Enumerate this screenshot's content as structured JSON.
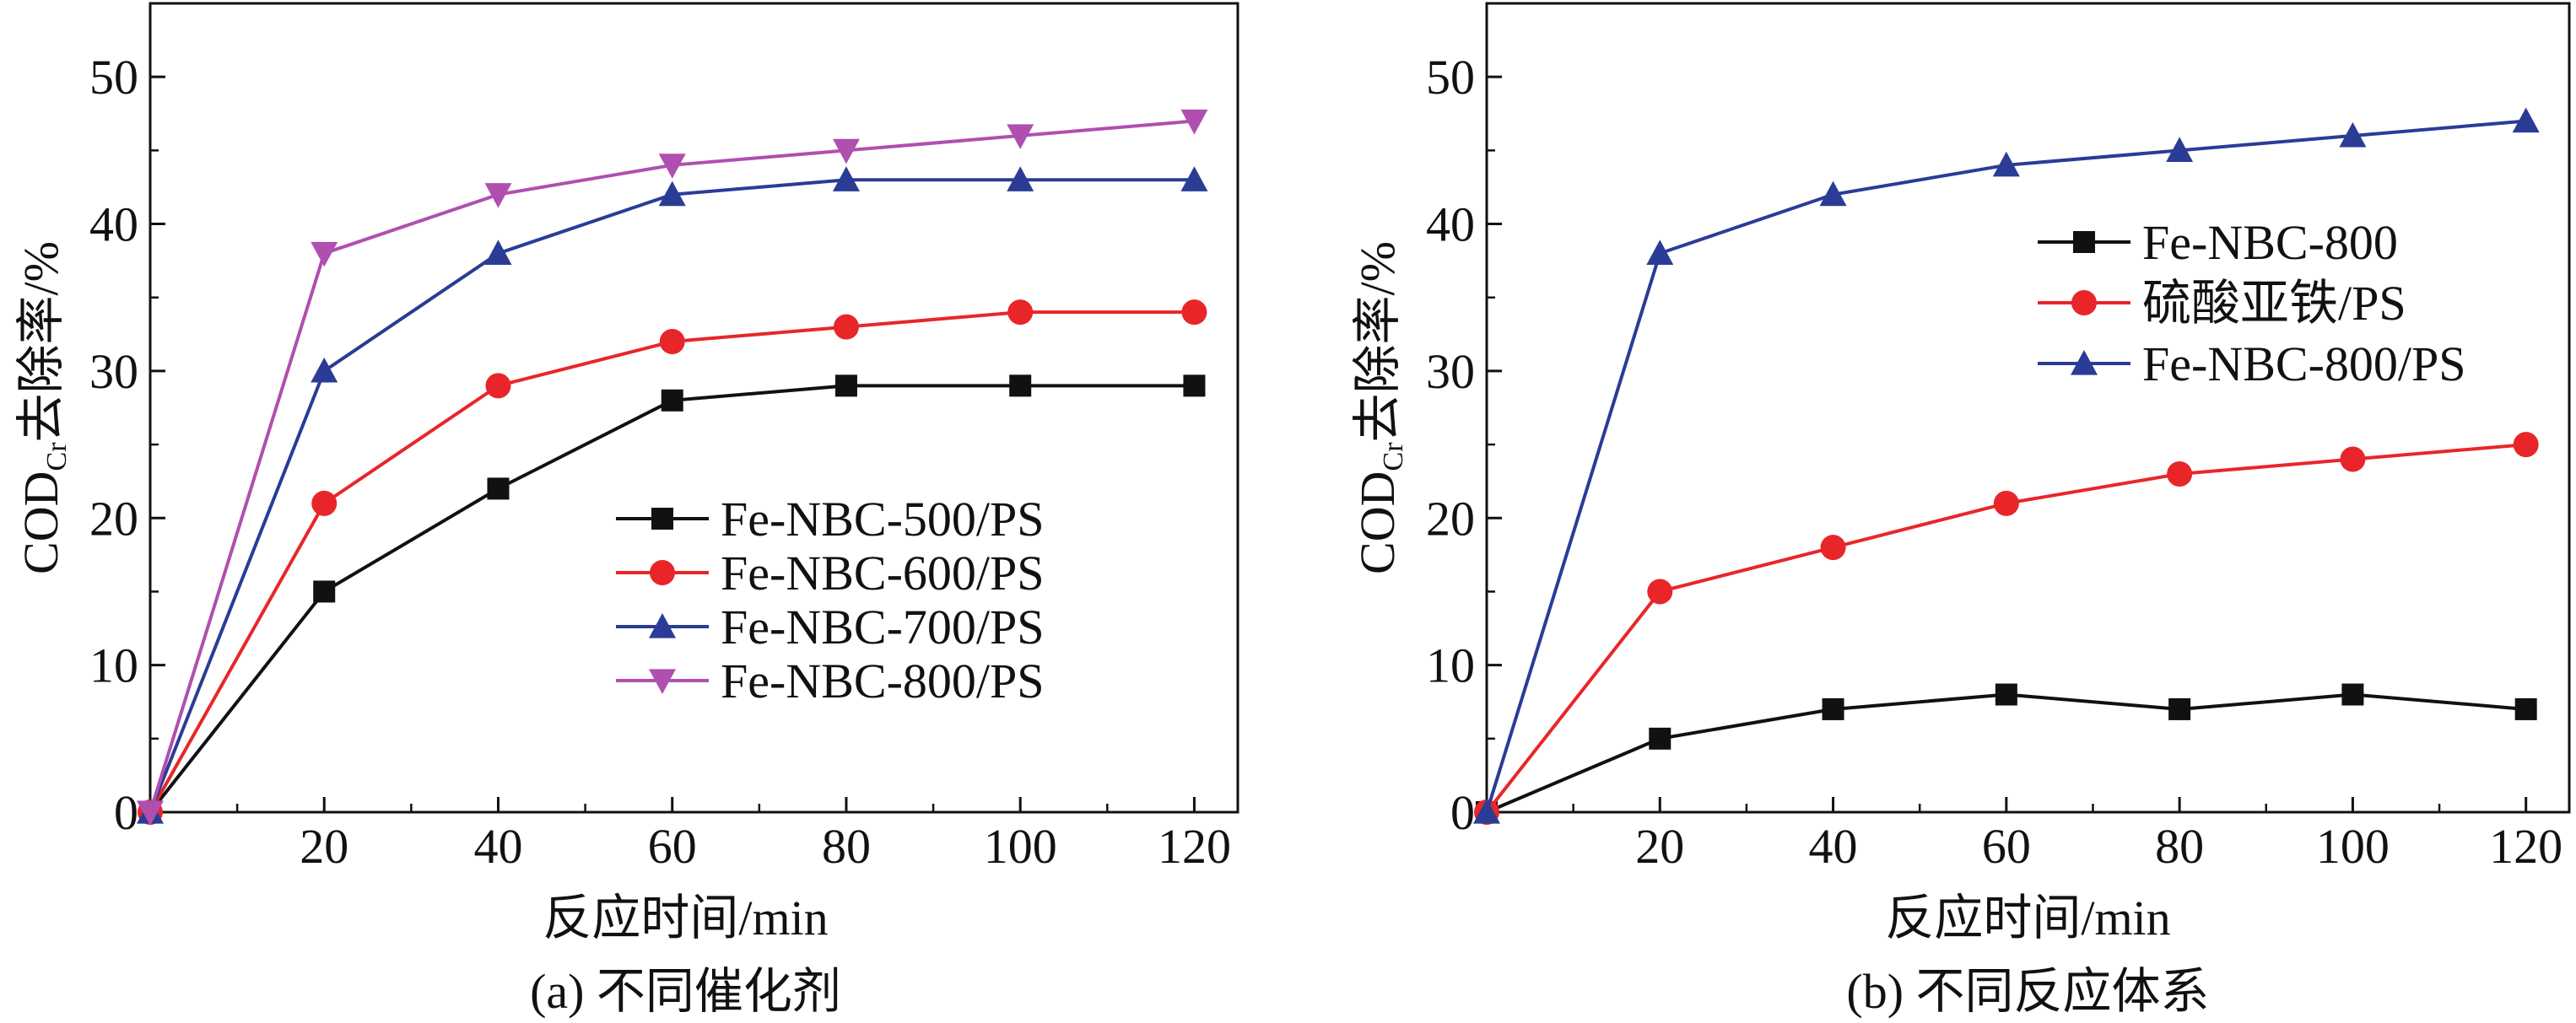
{
  "chart_data": [
    {
      "type": "line",
      "caption": "(a) 不同催化剂",
      "xlabel": "反应时间/min",
      "ylabel": {
        "main": "COD",
        "sub": "Cr",
        "rest": "去除率/%"
      },
      "xlim": [
        0,
        125
      ],
      "ylim": [
        0,
        55
      ],
      "xticks": [
        20,
        40,
        60,
        80,
        100,
        120
      ],
      "yticks": [
        0,
        10,
        20,
        30,
        40,
        50
      ],
      "grid": false,
      "legend_position": "lower-right",
      "x": [
        0,
        20,
        40,
        60,
        80,
        100,
        120
      ],
      "series": [
        {
          "name": "Fe-NBC-500/PS",
          "color": "#111111",
          "marker": "square",
          "values": [
            0,
            15,
            22,
            28,
            29,
            29,
            29
          ]
        },
        {
          "name": "Fe-NBC-600/PS",
          "color": "#e8262a",
          "marker": "circle",
          "values": [
            0,
            21,
            29,
            32,
            33,
            34,
            34
          ]
        },
        {
          "name": "Fe-NBC-700/PS",
          "color": "#2b3c96",
          "marker": "triangle-up",
          "values": [
            0,
            30,
            38,
            42,
            43,
            43,
            43
          ]
        },
        {
          "name": "Fe-NBC-800/PS",
          "color": "#b04fb0",
          "marker": "triangle-down",
          "values": [
            0,
            38,
            42,
            44,
            45,
            46,
            47
          ]
        }
      ]
    },
    {
      "type": "line",
      "caption": "(b) 不同反应体系",
      "xlabel": "反应时间/min",
      "ylabel": {
        "main": "COD",
        "sub": "Cr",
        "rest": "去除率/%"
      },
      "xlim": [
        0,
        125
      ],
      "ylim": [
        0,
        55
      ],
      "xticks": [
        20,
        40,
        60,
        80,
        100,
        120
      ],
      "yticks": [
        0,
        10,
        20,
        30,
        40,
        50
      ],
      "grid": false,
      "legend_position": "upper-right",
      "x": [
        0,
        20,
        40,
        60,
        80,
        100,
        120
      ],
      "series": [
        {
          "name": "Fe-NBC-800",
          "color": "#111111",
          "marker": "square",
          "values": [
            0,
            5,
            7,
            8,
            7,
            8,
            7
          ]
        },
        {
          "name": "硫酸亚铁/PS",
          "color": "#e8262a",
          "marker": "circle",
          "values": [
            0,
            15,
            18,
            21,
            23,
            24,
            25
          ]
        },
        {
          "name": "Fe-NBC-800/PS",
          "color": "#2b3c96",
          "marker": "triangle-up",
          "values": [
            0,
            38,
            42,
            44,
            45,
            46,
            47
          ]
        }
      ]
    }
  ]
}
